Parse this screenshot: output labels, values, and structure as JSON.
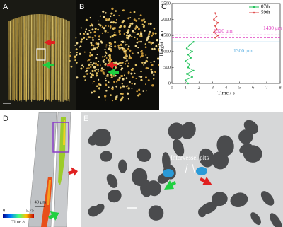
{
  "panel_labels": [
    "A",
    "B",
    "C",
    "D",
    "E"
  ],
  "chart_data": {
    "type": "line",
    "x_label": "Time / s",
    "y_label": "Height / μm",
    "xlim": [
      0,
      8
    ],
    "xticks": [
      0,
      1,
      2,
      3,
      4,
      5,
      6,
      7,
      8
    ],
    "ylim": [
      0,
      2500
    ],
    "yticks": [
      0,
      500,
      1000,
      1500,
      2000,
      2500
    ],
    "legend": "upper right",
    "series": [
      {
        "name": "07th",
        "color": "#22c25a",
        "x": [
          1.2,
          1.0,
          1.5,
          1.1,
          1.6,
          1.2,
          1.3,
          1.0,
          1.4,
          1.2,
          1.5,
          1.1,
          1.3,
          1.6
        ],
        "values": [
          0,
          100,
          200,
          300,
          400,
          500,
          600,
          700,
          800,
          900,
          1000,
          1100,
          1200,
          1300
        ]
      },
      {
        "name": "59th",
        "color": "#e05050",
        "x": [
          3.2,
          3.4,
          3.1,
          3.3,
          3.2,
          3.4,
          3.1,
          3.3,
          3.2
        ],
        "values": [
          1430,
          1500,
          1600,
          1700,
          1800,
          1900,
          2000,
          2100,
          2200
        ]
      }
    ],
    "reference_lines": [
      {
        "value": 1520,
        "label": "1520 μm",
        "color": "#e040c0",
        "style": "dashed"
      },
      {
        "value": 1430,
        "label": "1430 μm",
        "color": "#e040c0",
        "style": "dashed"
      },
      {
        "value": 1300,
        "label": "1300 μm",
        "color": "#4aa8e0",
        "style": "solid"
      }
    ]
  },
  "panel_d": {
    "colorbar_min": "0",
    "colorbar_max": "5.75",
    "colorbar_label": "Time /s",
    "scale_bar": "40 μm"
  },
  "panel_e": {
    "annotation": "Intervessel pits"
  }
}
